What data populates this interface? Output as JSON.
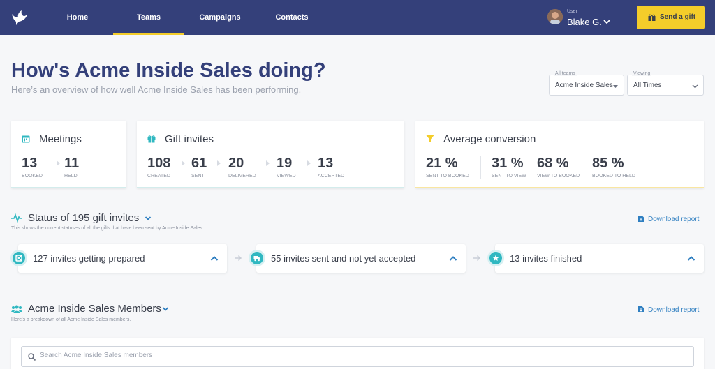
{
  "nav": {
    "items": [
      {
        "label": "Home",
        "active": false
      },
      {
        "label": "Teams",
        "active": true
      },
      {
        "label": "Campaigns",
        "active": false
      },
      {
        "label": "Contacts",
        "active": false
      }
    ],
    "user_caption": "User",
    "user_name": "Blake G.",
    "send_gift_label": "Send a gift"
  },
  "header": {
    "title": "How's Acme Inside Sales doing?",
    "subtitle": "Here’s an overview of how well Acme Inside Sales has been performing."
  },
  "filters": {
    "team": {
      "caption": "All teams",
      "value": "Acme Inside Sales"
    },
    "viewing": {
      "caption": "Viewing",
      "value": "All Times"
    }
  },
  "cards": {
    "meetings": {
      "title": "Meetings",
      "stats": [
        {
          "value": "13",
          "label": "BOOKED"
        },
        {
          "value": "11",
          "label": "HELD"
        }
      ]
    },
    "gift_invites": {
      "title": "Gift invites",
      "stats": [
        {
          "value": "108",
          "label": "CREATED"
        },
        {
          "value": "61",
          "label": "SENT"
        },
        {
          "value": "20",
          "label": "DELIVERED"
        },
        {
          "value": "19",
          "label": "VIEWED"
        },
        {
          "value": "13",
          "label": "ACCEPTED"
        }
      ]
    },
    "conversion": {
      "title": "Average conversion",
      "stats": [
        {
          "value": "21 %",
          "label": "SENT TO BOOKED"
        },
        {
          "value": "31 %",
          "label": "SENT TO VIEW"
        },
        {
          "value": "68 %",
          "label": "VIEW TO BOOKED"
        },
        {
          "value": "85 %",
          "label": "BOOKED TO HELD"
        }
      ]
    }
  },
  "status_section": {
    "title": "Status of 195 gift invites",
    "subtitle": "This shows the current statuses of all the gifts that have been sent by Acme Inside Sales.",
    "download_label": "Download report",
    "stages": [
      {
        "label": "127 invites getting prepared",
        "icon": "package-icon"
      },
      {
        "label": "55 invites sent and not yet accepted",
        "icon": "truck-icon"
      },
      {
        "label": "13 invites finished",
        "icon": "star-icon"
      }
    ]
  },
  "members_section": {
    "title": "Acme Inside Sales Members",
    "subtitle": "Here's a breakdown of all Acme Inside Sales members.",
    "download_label": "Download report",
    "search_placeholder": "Search Acme Inside Sales members",
    "search_value": ""
  },
  "colors": {
    "nav_bg": "#34407a",
    "accent_yellow": "#f4cd2a",
    "teal": "#30b8c1",
    "title_blue": "#34407a",
    "link_blue": "#2f7fc1"
  }
}
